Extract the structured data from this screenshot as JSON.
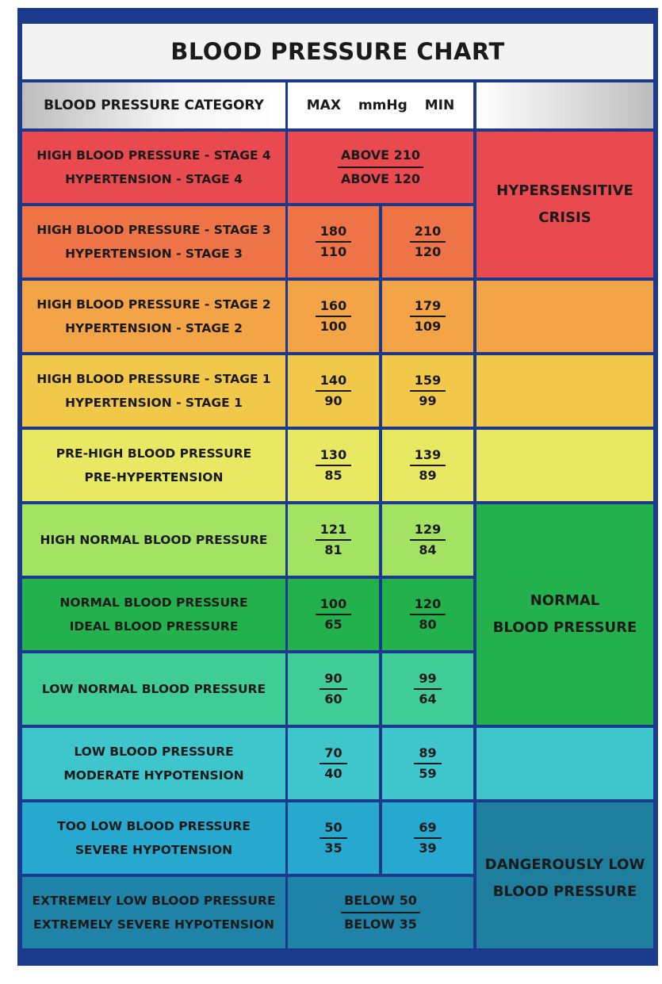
{
  "title": "BLOOD PRESSURE CHART",
  "header": {
    "category": "BLOOD PRESSURE CATEGORY",
    "max": "MAX",
    "unit": "mmHg",
    "min": "MIN"
  },
  "rows": [
    {
      "line1": "HIGH BLOOD PRESSURE - STAGE 4",
      "line2": "HYPERTENSION - STAGE 4",
      "span_top": "ABOVE 210",
      "span_bottom": "ABOVE 120",
      "color": "#e84a50"
    },
    {
      "line1": "HIGH BLOOD PRESSURE - STAGE 3",
      "line2": "HYPERTENSION - STAGE 3",
      "max_top": "180",
      "max_bottom": "110",
      "min_top": "210",
      "min_bottom": "120",
      "color": "#ee7447"
    },
    {
      "line1": "HIGH BLOOD PRESSURE - STAGE 2",
      "line2": "HYPERTENSION - STAGE 2",
      "max_top": "160",
      "max_bottom": "100",
      "min_top": "179",
      "min_bottom": "109",
      "color": "#f2a446"
    },
    {
      "line1": "HIGH BLOOD PRESSURE - STAGE 1",
      "line2": "HYPERTENSION - STAGE 1",
      "max_top": "140",
      "max_bottom": "90",
      "min_top": "159",
      "min_bottom": "99",
      "color": "#f2c84b"
    },
    {
      "line1": "PRE-HIGH BLOOD PRESSURE",
      "line2": "PRE-HYPERTENSION",
      "max_top": "130",
      "max_bottom": "85",
      "min_top": "139",
      "min_bottom": "89",
      "color": "#e9e862"
    },
    {
      "line1": "HIGH NORMAL BLOOD PRESSURE",
      "line2": "",
      "max_top": "121",
      "max_bottom": "81",
      "min_top": "129",
      "min_bottom": "84",
      "color": "#a4e263"
    },
    {
      "line1": "NORMAL BLOOD PRESSURE",
      "line2": "IDEAL BLOOD PRESSURE",
      "max_top": "100",
      "max_bottom": "65",
      "min_top": "120",
      "min_bottom": "80",
      "color": "#22b14c"
    },
    {
      "line1": "LOW NORMAL BLOOD PRESSURE",
      "line2": "",
      "max_top": "90",
      "max_bottom": "60",
      "min_top": "99",
      "min_bottom": "64",
      "color": "#3fcc96"
    },
    {
      "line1": "LOW BLOOD PRESSURE",
      "line2": "MODERATE HYPOTENSION",
      "max_top": "70",
      "max_bottom": "40",
      "min_top": "89",
      "min_bottom": "59",
      "color": "#3fc6cc"
    },
    {
      "line1": "TOO LOW BLOOD PRESSURE",
      "line2": "SEVERE HYPOTENSION",
      "max_top": "50",
      "max_bottom": "35",
      "min_top": "69",
      "min_bottom": "39",
      "color": "#26a8cf"
    },
    {
      "line1": "EXTREMELY LOW BLOOD PRESSURE",
      "line2": "EXTREMELY SEVERE HYPOTENSION",
      "span_top": "BELOW 50",
      "span_bottom": "BELOW 35",
      "color": "#1f83a8"
    }
  ],
  "groups": [
    {
      "line1": "HYPERSENSITIVE",
      "line2": "CRISIS",
      "color": "#e84a50"
    },
    {
      "line1": "",
      "line2": "",
      "color": "#f2a446"
    },
    {
      "line1": "",
      "line2": "",
      "color": "#f2c84b"
    },
    {
      "line1": "",
      "line2": "",
      "color": "#e9e862"
    },
    {
      "line1": "NORMAL",
      "line2": "BLOOD PRESSURE",
      "color": "#22b14c"
    },
    {
      "line1": "",
      "line2": "",
      "color": "#3fc6cc"
    },
    {
      "line1": "DANGEROUSLY LOW",
      "line2": "BLOOD PRESSURE",
      "color": "#1d7e9e"
    }
  ]
}
